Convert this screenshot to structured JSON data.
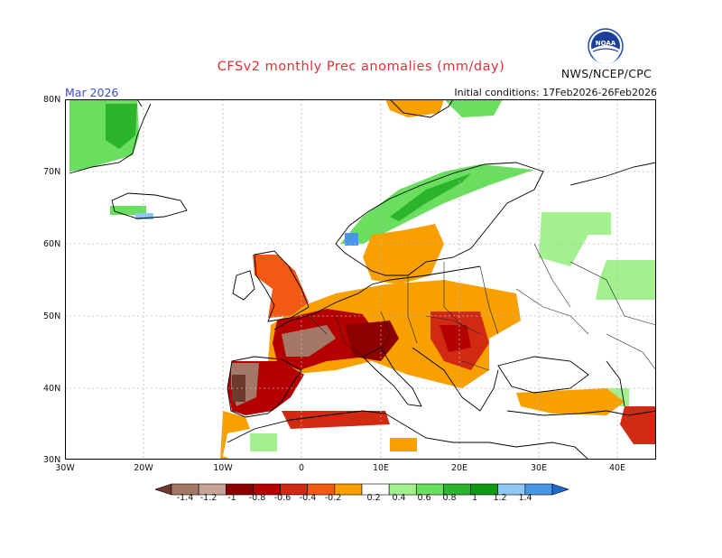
{
  "header": {
    "title": "CFSv2 monthly Prec anomalies (mm/day)",
    "month": "Mar 2026",
    "initial_conditions": "Initial conditions: 17Feb2026-26Feb2026",
    "agency": "NWS/NCEP/CPC",
    "logo_text": "NOAA"
  },
  "axes": {
    "lat_labels": [
      "80N",
      "70N",
      "60N",
      "50N",
      "40N",
      "30N"
    ],
    "lon_labels": [
      "30W",
      "20W",
      "10W",
      "0",
      "10E",
      "20E",
      "30E",
      "40E"
    ]
  },
  "legend": {
    "labels": [
      "-1.4",
      "-1.2",
      "-1",
      "-0.8",
      "-0.6",
      "-0.4",
      "-0.2",
      "0.2",
      "0.4",
      "0.6",
      "0.8",
      "1",
      "1.2",
      "1.4"
    ],
    "colors": [
      "#6e3a2e",
      "#a47866",
      "#c8a498",
      "#8c0000",
      "#b40000",
      "#d22a12",
      "#f25a14",
      "#f7a000",
      "#ffffff",
      "#a2f08e",
      "#6ade5e",
      "#2cb42c",
      "#109a14",
      "#8ec8f0",
      "#4a96e6",
      "#1e6ad2"
    ]
  }
}
